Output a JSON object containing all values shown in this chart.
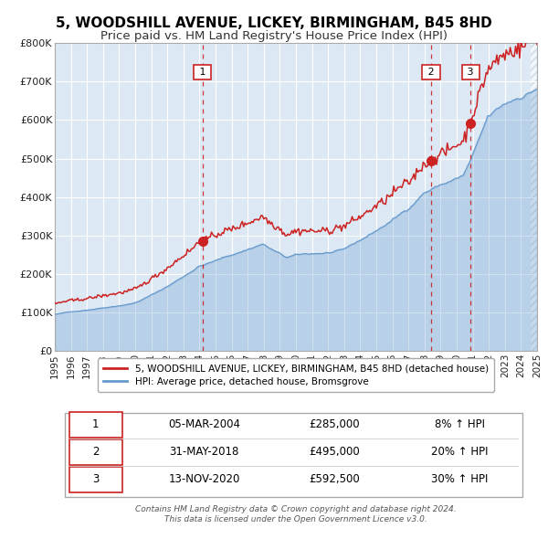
{
  "title": "5, WOODSHILL AVENUE, LICKEY, BIRMINGHAM, B45 8HD",
  "subtitle": "Price paid vs. HM Land Registry's House Price Index (HPI)",
  "title_fontsize": 11,
  "subtitle_fontsize": 9.5,
  "bg_color": "#dce9f5",
  "fig_bg_color": "#ffffff",
  "hatch_color": "#b0c4d8",
  "red_line_color": "#cc2222",
  "blue_line_color": "#6699cc",
  "grid_color": "#ffffff",
  "axis_label_color": "#222222",
  "xmin": 1995,
  "xmax": 2025,
  "ymin": 0,
  "ymax": 800000,
  "yticks": [
    0,
    100000,
    200000,
    300000,
    400000,
    500000,
    600000,
    700000,
    800000
  ],
  "ytick_labels": [
    "£0",
    "£100K",
    "£200K",
    "£300K",
    "£400K",
    "£500K",
    "£600K",
    "£700K",
    "£800K"
  ],
  "xticks": [
    1995,
    1996,
    1997,
    1998,
    1999,
    2000,
    2001,
    2002,
    2003,
    2004,
    2005,
    2006,
    2007,
    2008,
    2009,
    2010,
    2011,
    2012,
    2013,
    2014,
    2015,
    2016,
    2017,
    2018,
    2019,
    2020,
    2021,
    2022,
    2023,
    2024,
    2025
  ],
  "sale_dates": [
    2004.18,
    2018.42,
    2020.87
  ],
  "sale_prices": [
    285000,
    495000,
    592500
  ],
  "sale_labels": [
    "1",
    "2",
    "3"
  ],
  "legend_entries": [
    "5, WOODSHILL AVENUE, LICKEY, BIRMINGHAM, B45 8HD (detached house)",
    "HPI: Average price, detached house, Bromsgrove"
  ],
  "table_data": [
    [
      "1",
      "05-MAR-2004",
      "£285,000",
      "8% ↑ HPI"
    ],
    [
      "2",
      "31-MAY-2018",
      "£495,000",
      "20% ↑ HPI"
    ],
    [
      "3",
      "13-NOV-2020",
      "£592,500",
      "30% ↑ HPI"
    ]
  ],
  "footer": "Contains HM Land Registry data © Crown copyright and database right 2024.\nThis data is licensed under the Open Government Licence v3.0."
}
